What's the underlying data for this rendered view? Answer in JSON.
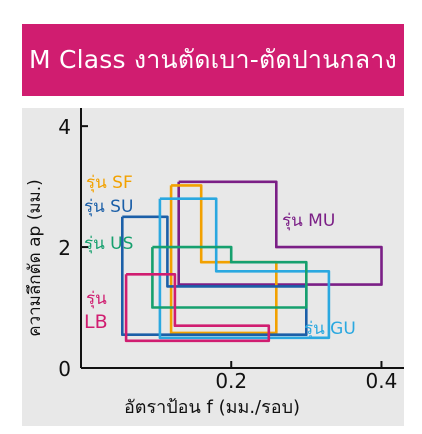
{
  "banner": {
    "title": "M Class งานตัดเบา-ตัดปานกลาง",
    "color": "#d01d70"
  },
  "chart_data": {
    "type": "area",
    "xlabel": "อัตราป้อน f (มม./รอบ)",
    "ylabel": "ความลึกตัด ap (มม.)",
    "xlim": [
      0,
      0.43
    ],
    "ylim": [
      0,
      4.3
    ],
    "x_ticks": [
      "0.2",
      "0.4"
    ],
    "y_ticks": [
      "0",
      "2",
      "4"
    ],
    "grid": false,
    "series": [
      {
        "name": "รุ่น MU",
        "color": "#7b1f86",
        "x": [
          0.13,
          0.26,
          0.26,
          0.4,
          0.4,
          0.13,
          0.13
        ],
        "y": [
          3.08,
          3.08,
          2.0,
          2.0,
          1.38,
          1.38,
          3.08
        ]
      },
      {
        "name": "รุ่น SF",
        "color": "#f2a100",
        "x": [
          0.12,
          0.16,
          0.16,
          0.26,
          0.26,
          0.12,
          0.12
        ],
        "y": [
          3.02,
          3.02,
          1.75,
          1.75,
          0.58,
          0.58,
          3.02
        ]
      },
      {
        "name": "รุ่น SU",
        "color": "#1b5fa8",
        "x": [
          0.055,
          0.115,
          0.115,
          0.3,
          0.3,
          0.055,
          0.055
        ],
        "y": [
          2.5,
          2.5,
          1.35,
          1.35,
          0.55,
          0.55,
          2.5
        ]
      },
      {
        "name": "รุ่น GU",
        "color": "#2aa8e0",
        "x": [
          0.105,
          0.18,
          0.18,
          0.33,
          0.33,
          0.105,
          0.105
        ],
        "y": [
          2.8,
          2.8,
          1.6,
          1.6,
          0.5,
          0.5,
          2.8
        ]
      },
      {
        "name": "รุ่น US",
        "color": "#16a06e",
        "x": [
          0.095,
          0.2,
          0.2,
          0.3,
          0.3,
          0.095,
          0.095
        ],
        "y": [
          2.0,
          2.0,
          1.75,
          1.75,
          1.0,
          1.0,
          2.0
        ]
      },
      {
        "name": "รุ่น LB",
        "color": "#d01d70",
        "x": [
          0.06,
          0.125,
          0.125,
          0.25,
          0.25,
          0.06,
          0.06
        ],
        "y": [
          1.55,
          1.55,
          0.7,
          0.7,
          0.45,
          0.45,
          1.55
        ]
      }
    ]
  }
}
